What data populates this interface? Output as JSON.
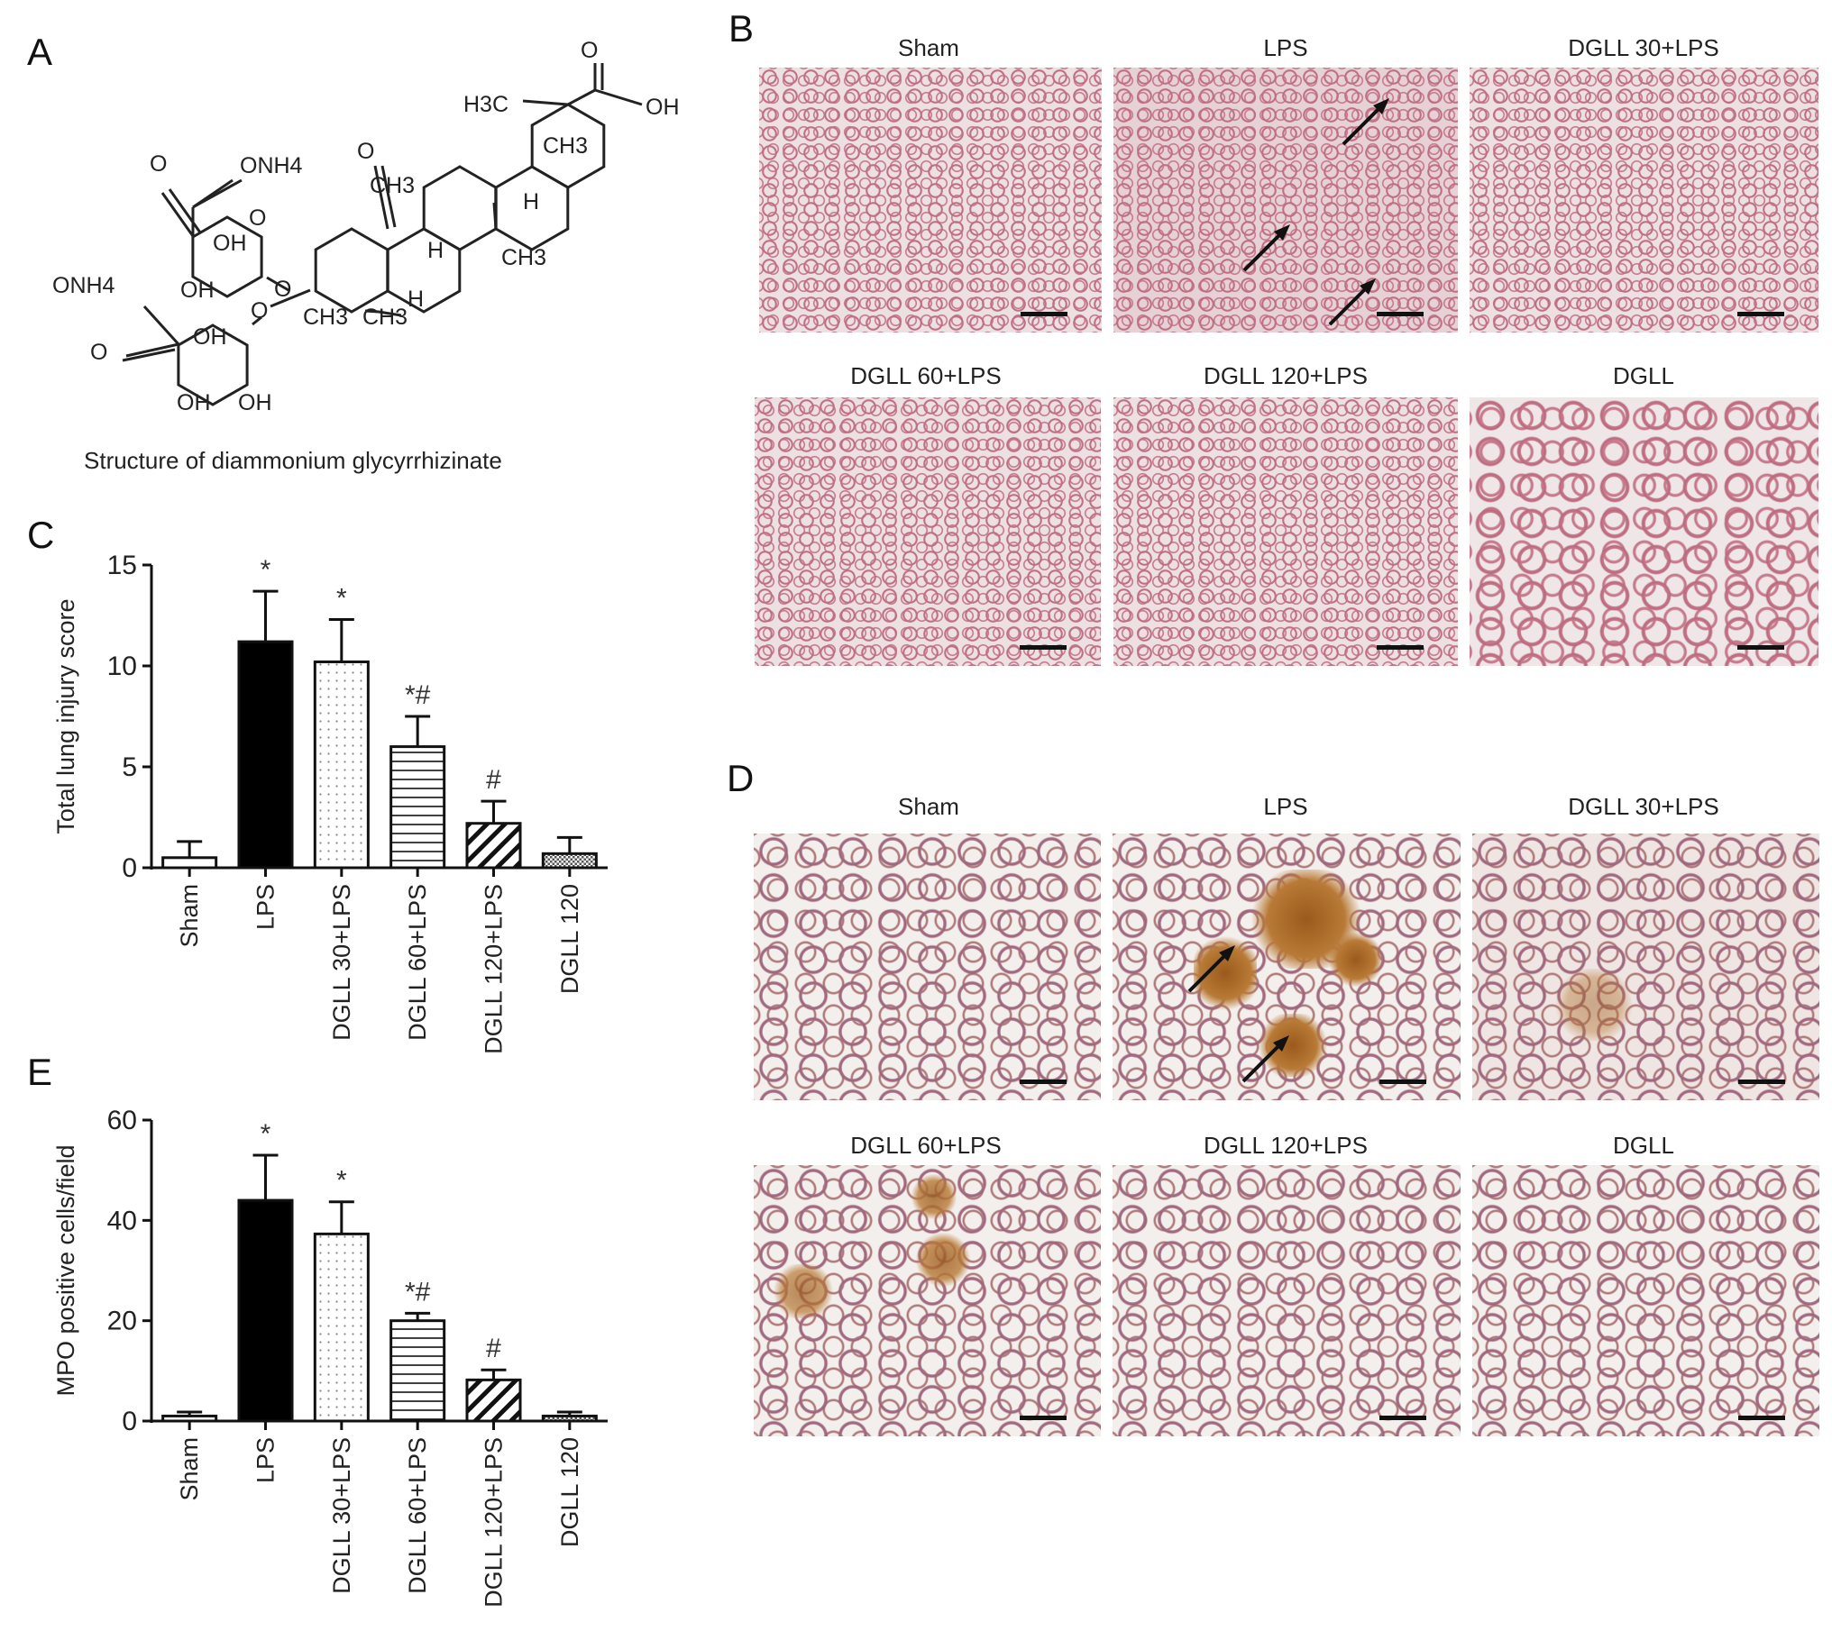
{
  "panel_labels": {
    "a": "A",
    "b": "B",
    "c": "C",
    "d": "D",
    "e": "E"
  },
  "structure": {
    "caption": "Structure of diammonium glycyrrhizinate",
    "labels": {
      "o1": "O",
      "onh4_1": "ONH4",
      "oh_ring1": "OH",
      "o_ring1": "O",
      "oh1": "OH",
      "o_link1": "O",
      "o_link2": "O",
      "onh4_2": "ONH4",
      "o2": "O",
      "oh_ring2": "OH",
      "oh2": "OH",
      "oh3": "OH",
      "o_keto": "O",
      "ch3_a": "CH3",
      "h_a": "H",
      "ch3_b": "CH3",
      "ch3_c": "CH3",
      "ch3_d": "CH3",
      "h_b": "H",
      "h_c": "H",
      "ch3_e": "CH3",
      "h3c": "H3C",
      "o_acid": "O",
      "oh_acid": "OH"
    }
  },
  "he_panels": {
    "titles": [
      "Sham",
      "LPS",
      "DGLL 30+LPS",
      "DGLL 60+LPS",
      "DGLL 120+LPS",
      "DGLL"
    ]
  },
  "ihc_panels": {
    "titles": [
      "Sham",
      "LPS",
      "DGLL 30+LPS",
      "DGLL 60+LPS",
      "DGLL 120+LPS",
      "DGLL"
    ]
  },
  "colors": {
    "he_stain": "#c7798a",
    "ihc_positive": "#9a5a1c",
    "bar_black": "#000000"
  },
  "chart_data": [
    {
      "id": "C",
      "type": "bar",
      "categories": [
        "Sham",
        "LPS",
        "DGLL 30+LPS",
        "DGLL 60+LPS",
        "DGLL 120+LPS",
        "DGLL 120"
      ],
      "values": [
        0.5,
        11.2,
        10.2,
        6.0,
        2.2,
        0.7
      ],
      "error_upper": [
        0.8,
        2.5,
        2.1,
        1.5,
        1.1,
        0.8
      ],
      "annotations": [
        "",
        "*",
        "*",
        "*#",
        "#",
        ""
      ],
      "fills": [
        "open",
        "solid",
        "dots",
        "horizontal-lines",
        "diagonal-hatch",
        "crosshatch"
      ],
      "ylabel": "Total lung injury score",
      "ylim": [
        0,
        15
      ],
      "yticks": [
        0,
        5,
        10,
        15
      ],
      "grid": false
    },
    {
      "id": "E",
      "type": "bar",
      "categories": [
        "Sham",
        "LPS",
        "DGLL 30+LPS",
        "DGLL 60+LPS",
        "DGLL 120+LPS",
        "DGLL 120"
      ],
      "values": [
        1.0,
        44.0,
        37.3,
        20.0,
        8.2,
        1.0
      ],
      "error_upper": [
        0.8,
        9.0,
        6.4,
        1.5,
        2.0,
        0.8
      ],
      "annotations": [
        "",
        "*",
        "*",
        "*#",
        "#",
        ""
      ],
      "fills": [
        "open",
        "solid",
        "dots",
        "horizontal-lines",
        "diagonal-hatch",
        "crosshatch"
      ],
      "ylabel": "MPO positive cells/field",
      "ylim": [
        0,
        60
      ],
      "yticks": [
        0,
        20,
        40,
        60
      ],
      "grid": false
    }
  ]
}
